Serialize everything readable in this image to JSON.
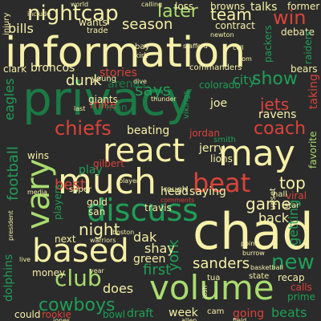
{
  "palette": {
    "background": "#2b2b2b",
    "cream": "#f6f0a8",
    "green": "#1f9e57",
    "lime": "#a9dc6e",
    "red": "#d9433a",
    "darkgreen": "#1b7a45",
    "mint": "#8fd07a"
  },
  "words": [
    {
      "text": "information",
      "color": "cream"
    },
    {
      "text": "privacy",
      "color": "darkgreen"
    },
    {
      "text": "chad",
      "color": "cream"
    },
    {
      "text": "volume",
      "color": "lime"
    },
    {
      "text": "react",
      "color": "cream"
    },
    {
      "text": "may",
      "color": "cream"
    },
    {
      "text": "much",
      "color": "cream"
    },
    {
      "text": "discuss",
      "color": "green"
    },
    {
      "text": "based",
      "color": "cream"
    },
    {
      "text": "vary",
      "color": "lime"
    },
    {
      "text": "beat",
      "color": "red"
    },
    {
      "text": "club",
      "color": "lime"
    },
    {
      "text": "nightcap",
      "color": "cream"
    },
    {
      "text": "later",
      "color": "lime"
    },
    {
      "text": "team",
      "color": "cream"
    },
    {
      "text": "win",
      "color": "red"
    },
    {
      "text": "show",
      "color": "green"
    },
    {
      "text": "says",
      "color": "green"
    },
    {
      "text": "season",
      "color": "cream"
    },
    {
      "text": "chiefs",
      "color": "red"
    },
    {
      "text": "coach",
      "color": "red"
    },
    {
      "text": "jets",
      "color": "red"
    },
    {
      "text": "new",
      "color": "green"
    },
    {
      "text": "cowboys",
      "color": "green"
    },
    {
      "text": "night",
      "color": "cream"
    },
    {
      "text": "game",
      "color": "cream"
    },
    {
      "text": "top",
      "color": "cream"
    },
    {
      "text": "first",
      "color": "green"
    },
    {
      "text": "sanders",
      "color": "cream"
    },
    {
      "text": "best",
      "color": "red"
    },
    {
      "text": "dunk",
      "color": "cream"
    },
    {
      "text": "stories",
      "color": "red"
    },
    {
      "text": "arenas",
      "color": "darkgreen"
    },
    {
      "text": "bills",
      "color": "cream"
    },
    {
      "text": "football",
      "color": "green"
    },
    {
      "text": "york",
      "color": "green"
    },
    {
      "text": "dak",
      "color": "cream"
    },
    {
      "text": "shay",
      "color": "cream"
    },
    {
      "text": "green",
      "color": "cream"
    },
    {
      "text": "head",
      "color": "cream"
    },
    {
      "text": "saying",
      "color": "cream"
    },
    {
      "text": "back",
      "color": "cream"
    },
    {
      "text": "getting",
      "color": "green"
    },
    {
      "text": "does",
      "color": "cream"
    },
    {
      "text": "draft",
      "color": "green"
    },
    {
      "text": "week",
      "color": "cream"
    },
    {
      "text": "going",
      "color": "red"
    },
    {
      "text": "beats",
      "color": "green"
    },
    {
      "text": "jerry",
      "color": "cream"
    },
    {
      "text": "lions",
      "color": "cream"
    },
    {
      "text": "ravens",
      "color": "cream"
    },
    {
      "text": "beating",
      "color": "cream"
    },
    {
      "text": "play",
      "color": "green"
    },
    {
      "text": "travis",
      "color": "cream"
    },
    {
      "text": "next",
      "color": "cream"
    },
    {
      "text": "players",
      "color": "green"
    },
    {
      "text": "taking",
      "color": "red"
    },
    {
      "text": "talks",
      "color": "cream"
    },
    {
      "text": "loss",
      "color": "cream"
    },
    {
      "text": "browns",
      "color": "cream"
    },
    {
      "text": "wants",
      "color": "cream"
    },
    {
      "text": "city",
      "color": "green"
    },
    {
      "text": "colorado",
      "color": "green"
    },
    {
      "text": "joe",
      "color": "cream"
    },
    {
      "text": "mike",
      "color": "red"
    },
    {
      "text": "gold",
      "color": "cream"
    },
    {
      "text": "san",
      "color": "cream"
    },
    {
      "text": "jordan",
      "color": "red"
    },
    {
      "text": "smith",
      "color": "green"
    },
    {
      "text": "favorite",
      "color": "lime"
    },
    {
      "text": "viral",
      "color": "red"
    },
    {
      "text": "rough",
      "color": "cream"
    },
    {
      "text": "broncos",
      "color": "cream"
    },
    {
      "text": "clark",
      "color": "cream"
    },
    {
      "text": "eagles",
      "color": "green"
    },
    {
      "text": "wins",
      "color": "cream"
    },
    {
      "text": "young",
      "color": "cream"
    },
    {
      "text": "giants",
      "color": "cream"
    },
    {
      "text": "money",
      "color": "cream"
    },
    {
      "text": "dolphins",
      "color": "green"
    },
    {
      "text": "rookie",
      "color": "red"
    },
    {
      "text": "could",
      "color": "cream"
    },
    {
      "text": "bowl",
      "color": "green"
    },
    {
      "text": "recap",
      "color": "cream"
    },
    {
      "text": "calls",
      "color": "red"
    },
    {
      "text": "prime",
      "color": "green"
    },
    {
      "text": "former",
      "color": "cream"
    },
    {
      "text": "debate",
      "color": "cream"
    },
    {
      "text": "packers",
      "color": "green"
    },
    {
      "text": "raiders",
      "color": "green"
    },
    {
      "text": "bears",
      "color": "cream"
    },
    {
      "text": "commanders",
      "color": "cream"
    },
    {
      "text": "trade",
      "color": "cream"
    },
    {
      "text": "contract",
      "color": "cream"
    },
    {
      "text": "bay",
      "color": "cream"
    },
    {
      "text": "kirk",
      "color": "cream"
    },
    {
      "text": "man",
      "color": "darkgreen"
    },
    {
      "text": "super",
      "color": "cream"
    },
    {
      "text": "vikings",
      "color": "green"
    },
    {
      "text": "hall",
      "color": "cream"
    },
    {
      "text": "star",
      "color": "cream"
    },
    {
      "text": "state",
      "color": "cream"
    },
    {
      "text": "tua",
      "color": "cream"
    },
    {
      "text": "cam",
      "color": "cream"
    },
    {
      "text": "allen",
      "color": "cream"
    },
    {
      "text": "injury",
      "color": "cream"
    },
    {
      "text": "gilbert",
      "color": "red"
    },
    {
      "text": "thunder",
      "color": "cream"
    },
    {
      "text": "upset",
      "color": "cream"
    },
    {
      "text": "dive",
      "color": "cream"
    },
    {
      "text": "comments",
      "color": "red"
    },
    {
      "text": "calling",
      "color": "cream"
    },
    {
      "text": "world",
      "color": "cream"
    },
    {
      "text": "include",
      "color": "cream"
    },
    {
      "text": "newton",
      "color": "cream"
    },
    {
      "text": "warriors",
      "color": "cream"
    },
    {
      "text": "boston",
      "color": "cream"
    },
    {
      "text": "basketball",
      "color": "cream"
    },
    {
      "text": "josh",
      "color": "cream"
    },
    {
      "text": "field",
      "color": "cream"
    },
    {
      "text": "jones",
      "color": "cream"
    },
    {
      "text": "year",
      "color": "cream"
    },
    {
      "text": "media",
      "color": "cream"
    },
    {
      "text": "president",
      "color": "cream"
    },
    {
      "text": "live",
      "color": "cream"
    },
    {
      "text": "burrow",
      "color": "cream"
    },
    {
      "text": "points",
      "color": "cream"
    },
    {
      "text": "stafford",
      "color": "cream"
    },
    {
      "text": "player",
      "color": "cream"
    },
    {
      "text": "coll",
      "color": "cream"
    },
    {
      "text": "last",
      "color": "cream"
    },
    {
      "text": "tom",
      "color": "cream"
    }
  ]
}
